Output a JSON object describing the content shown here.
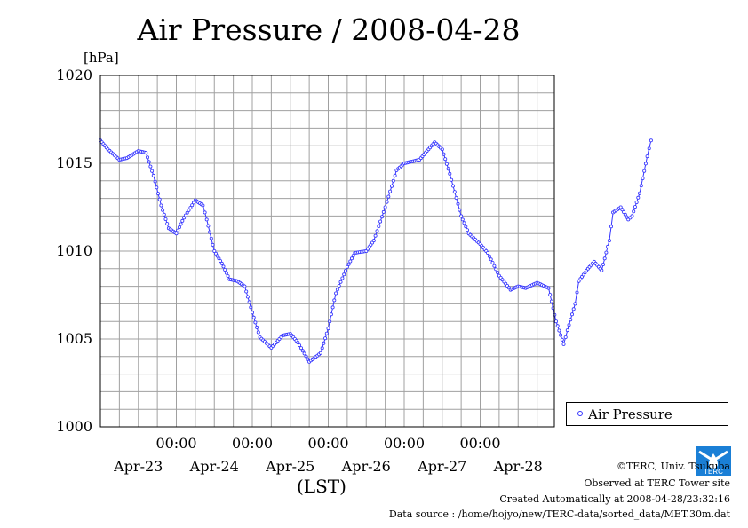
{
  "header": {
    "title": "Air Pressure / 2008-04-28",
    "unit": "[hPa]"
  },
  "chart_data": {
    "type": "line",
    "title": "Air Pressure / 2008-04-28",
    "ylabel": "[hPa]",
    "xlabel": "(LST)",
    "ylim": [
      1000,
      1020
    ],
    "yticks": [
      "1000",
      "1005",
      "1010",
      "1015",
      "1020"
    ],
    "xlim_days": [
      "Apr-22 00:00",
      "Apr-28 24:00"
    ],
    "time_tick_labels": [
      "00:00",
      "00:00",
      "00:00",
      "00:00",
      "00:00"
    ],
    "date_tick_labels": [
      "Apr-23",
      "Apr-24",
      "Apr-25",
      "Apr-26",
      "Apr-27",
      "Apr-28"
    ],
    "grid": true,
    "legend_position": "lower-right, outside plot",
    "series": [
      {
        "name": "Air Pressure",
        "color": "#3333ff",
        "marker": "open-circle",
        "x": [
          0.0,
          0.1,
          0.25,
          0.35,
          0.5,
          0.6,
          0.7,
          0.8,
          0.9,
          1.0,
          1.1,
          1.25,
          1.35,
          1.4,
          1.5,
          1.6,
          1.7,
          1.8,
          1.9,
          2.0,
          2.1,
          2.25,
          2.4,
          2.5,
          2.6,
          2.75,
          2.9,
          3.0,
          3.1,
          3.25,
          3.35,
          3.5,
          3.6,
          3.75,
          3.9,
          4.0,
          4.1,
          4.2,
          4.3,
          4.4,
          4.5,
          4.6,
          4.75,
          4.85,
          5.0,
          5.1,
          5.25,
          5.4,
          5.5,
          5.6,
          5.75,
          5.9,
          6.0
        ],
        "y": [
          1016.3,
          1015.8,
          1015.2,
          1015.3,
          1015.7,
          1015.6,
          1014.3,
          1012.6,
          1011.3,
          1011.0,
          1011.9,
          1012.9,
          1012.6,
          1011.8,
          1010.0,
          1009.3,
          1008.4,
          1008.3,
          1008.0,
          1006.5,
          1005.1,
          1004.5,
          1005.2,
          1005.3,
          1004.8,
          1003.7,
          1004.2,
          1005.6,
          1007.6,
          1009.1,
          1009.9,
          1010.0,
          1010.6,
          1012.5,
          1014.6,
          1015.0,
          1015.1,
          1015.2,
          1015.7,
          1016.2,
          1015.8,
          1014.4,
          1012.0,
          1011.0,
          1010.4,
          1009.9,
          1008.6,
          1007.8,
          1008.0,
          1007.9,
          1008.2,
          1007.9,
          1006.0
        ]
      }
    ]
  },
  "series_tail": {
    "x": [
      6.1,
      6.15,
      6.25,
      6.3,
      6.4,
      6.5,
      6.6,
      6.7,
      6.75,
      6.85,
      6.95,
      7.0
    ],
    "y": [
      1004.7,
      1005.5,
      1007.0,
      1008.3,
      1008.9,
      1009.4,
      1008.9,
      1010.6,
      1012.2,
      1012.5,
      1011.8,
      1012.0
    ]
  },
  "series_end": {
    "x": [
      7.1,
      7.2,
      7.25
    ],
    "y": [
      1013.3,
      1015.4,
      1016.3
    ]
  },
  "legend": {
    "label": "Air Pressure"
  },
  "footer": {
    "copyright": "©TERC, Univ. Tsukuba",
    "observed": "Observed at TERC Tower site",
    "created": "Created Automatically at 2008-04-28/23:32:16",
    "source": "Data source : /home/hojyo/new/TERC-data/sorted_data/MET.30m.dat"
  },
  "logo": {
    "text": "TERC"
  }
}
